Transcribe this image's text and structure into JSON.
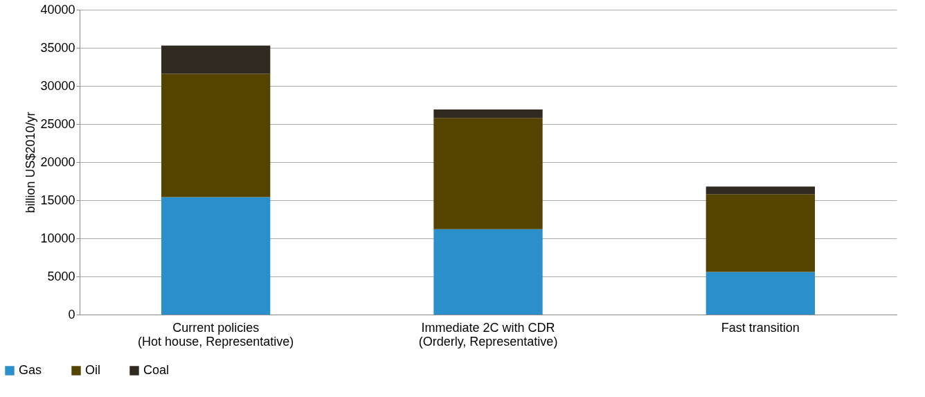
{
  "chart_data": {
    "type": "bar",
    "stacked": true,
    "ylabel": "billion US$2010/yr",
    "categories": [
      "Current policies\n(Hot house, Representative)",
      "Immediate 2C with CDR\n(Orderly, Representative)",
      "Fast transition"
    ],
    "series": [
      {
        "name": "Gas",
        "color": "#2b8fcb",
        "values": [
          15400,
          11200,
          5600
        ]
      },
      {
        "name": "Oil",
        "color": "#554400",
        "values": [
          16200,
          14600,
          10200
        ]
      },
      {
        "name": "Coal",
        "color": "#302a20",
        "values": [
          3700,
          1100,
          1000
        ]
      }
    ],
    "ylim": [
      0,
      40000
    ],
    "yticks": [
      0,
      5000,
      10000,
      15000,
      20000,
      25000,
      30000,
      35000,
      40000
    ],
    "grid": "y",
    "legend": "bottom left"
  }
}
